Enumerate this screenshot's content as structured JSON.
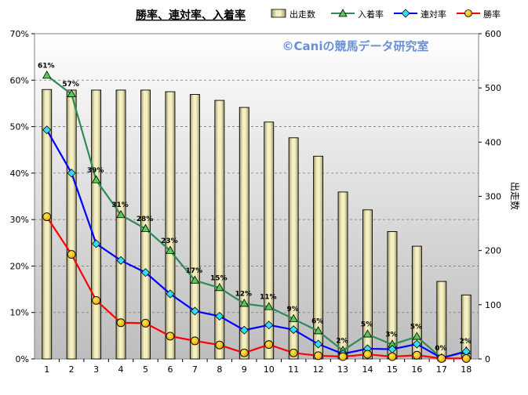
{
  "chart_data": {
    "type": "bar",
    "title": "勝率、連対率、入着率",
    "watermark": "©Caniの競馬データ研究室",
    "x": [
      "1",
      "2",
      "3",
      "4",
      "5",
      "6",
      "7",
      "8",
      "9",
      "10",
      "11",
      "12",
      "13",
      "14",
      "15",
      "16",
      "17",
      "18"
    ],
    "y_left": {
      "ylim": [
        0,
        70
      ],
      "ticks": [
        "0%",
        "10%",
        "20%",
        "30%",
        "40%",
        "50%",
        "60%",
        "70%"
      ]
    },
    "y_right": {
      "label": "出走数",
      "ylim": [
        0,
        600
      ],
      "ticks": [
        "0",
        "100",
        "200",
        "300",
        "400",
        "500",
        "600"
      ]
    },
    "bars": {
      "name": "出走数",
      "color": "#e8e4b0",
      "values": [
        497,
        496,
        496,
        496,
        496,
        493,
        488,
        477,
        464,
        437,
        408,
        374,
        308,
        275,
        235,
        208,
        143,
        118
      ]
    },
    "series": [
      {
        "name": "入着率",
        "color": "#2e8b57",
        "marker": "triangle",
        "values": [
          61,
          57,
          38.5,
          31,
          28,
          23.3,
          16.9,
          15.3,
          11.9,
          11.2,
          8.6,
          6,
          1.8,
          5.3,
          3.1,
          4.8,
          0.2,
          1.7
        ],
        "labels": [
          "61%",
          "57%",
          "39%",
          "31%",
          "28%",
          "23%",
          "17%",
          "15%",
          "12%",
          "11%",
          "9%",
          "6%",
          "2%",
          "5%",
          "3%",
          "5%",
          "0%",
          "2%"
        ]
      },
      {
        "name": "連対率",
        "color": "#0000ff",
        "marker": "diamond",
        "values": [
          49.3,
          40,
          24.8,
          21.2,
          18.6,
          14,
          10.3,
          9.2,
          6.2,
          7.3,
          6.3,
          3.2,
          1.1,
          2.2,
          2.1,
          3.2,
          0.2,
          1.6
        ]
      },
      {
        "name": "勝率",
        "color": "#ff0000",
        "marker": "circle",
        "values": [
          30.6,
          22.5,
          12.6,
          7.8,
          7.7,
          4.9,
          3.9,
          3,
          1.3,
          3.1,
          1.3,
          0.7,
          0.5,
          1,
          0.5,
          0.8,
          0.1,
          0.1
        ]
      }
    ],
    "legend": {
      "placement": "top",
      "items": [
        "出走数",
        "入着率",
        "連対率",
        "勝率"
      ]
    },
    "grid": "horizontal-dashed"
  }
}
